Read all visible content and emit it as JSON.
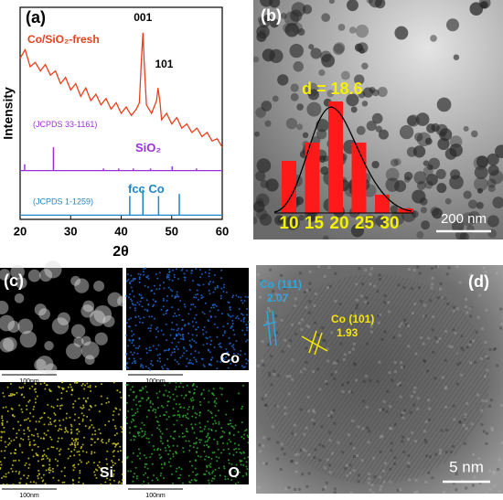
{
  "chart_data": [
    {
      "type": "line",
      "panel": "(a)",
      "xlabel": "2θ",
      "ylabel": "Intensity",
      "xlim": [
        20,
        60
      ],
      "xticks": [
        20,
        30,
        40,
        50,
        60
      ],
      "ylim": [
        0,
        100
      ],
      "series": [
        {
          "name": "Co/SiO₂-fresh",
          "color": "#e8401c",
          "x": [
            20,
            21,
            22,
            23,
            24,
            25,
            26,
            27,
            28,
            29,
            30,
            31,
            32,
            33,
            34,
            35,
            36,
            37,
            38,
            39,
            40,
            41,
            42,
            43,
            43.6,
            44,
            44.3,
            44.6,
            45,
            45.5,
            46,
            47,
            47.3,
            47.7,
            48,
            49,
            50,
            51,
            52,
            53,
            54,
            55,
            56,
            57,
            58,
            59,
            60
          ],
          "values": [
            76,
            80,
            72,
            74,
            70,
            73,
            68,
            70,
            64,
            67,
            61,
            64,
            58,
            62,
            56,
            59,
            54,
            57,
            52,
            55,
            50,
            53,
            49,
            52,
            55,
            75,
            88,
            72,
            54,
            52,
            50,
            56,
            62,
            55,
            47,
            50,
            45,
            48,
            43,
            45,
            41,
            43,
            39,
            41,
            37,
            38,
            34
          ]
        }
      ],
      "annotations": [
        {
          "text": "001",
          "x": 44.3,
          "y": 95
        },
        {
          "text": "101",
          "x": 48.5,
          "y": 73
        }
      ],
      "references": [
        {
          "name": "SiO₂",
          "label": "(JCPDS 33-1161)",
          "color": "#9b30d9",
          "base": 23,
          "x": [
            20.9,
            26.6,
            36.5,
            39.5,
            42.4,
            45.8,
            50.1,
            54.9
          ],
          "values": [
            3,
            11,
            1,
            1,
            1,
            1,
            2,
            1
          ]
        },
        {
          "name": "fcc Co",
          "label": "(JCPDS 1-1259)",
          "color": "#1f86c9",
          "base": 2,
          "x": [
            41.7,
            44.3,
            47.4,
            51.5
          ],
          "values": [
            9,
            12,
            9,
            10
          ]
        }
      ]
    },
    {
      "type": "bar",
      "panel": "(b)",
      "annotation": "d = 18.6",
      "scale_bar": "200 nm",
      "categories": [
        "10",
        "15",
        "20",
        "25",
        "30",
        null
      ],
      "values": [
        57,
        77,
        122,
        77,
        20,
        5
      ],
      "ylim": [
        0,
        130
      ],
      "color": "#ff1a1a"
    }
  ],
  "panel_c": {
    "label": "(c)",
    "maps": [
      "",
      "Co",
      "Si",
      "O"
    ],
    "scale_bar": "100nm"
  },
  "panel_d": {
    "label": "(d)",
    "planes": [
      {
        "name": "Co (111)",
        "d": "2.07"
      },
      {
        "name": "Co (101)",
        "d": "1.93"
      }
    ],
    "scale_bar": "5 nm"
  }
}
